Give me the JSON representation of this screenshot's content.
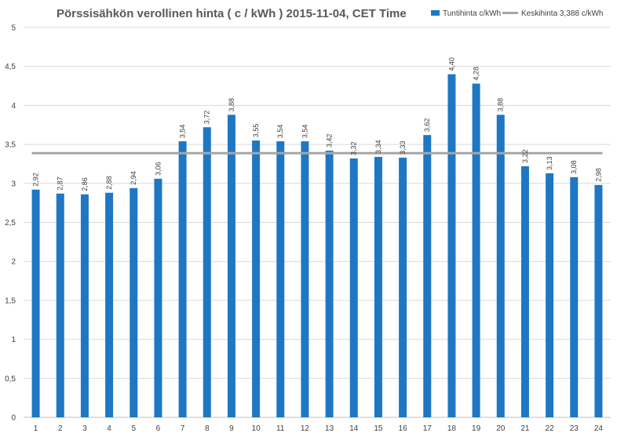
{
  "chart_data": {
    "type": "bar",
    "title": "Pörssisähkön verollinen hinta ( c / kWh ) 2015-11-04, CET Time",
    "categories": [
      "1",
      "2",
      "3",
      "4",
      "5",
      "6",
      "7",
      "8",
      "9",
      "10",
      "11",
      "12",
      "13",
      "14",
      "15",
      "16",
      "17",
      "18",
      "19",
      "20",
      "21",
      "22",
      "23",
      "24"
    ],
    "series": [
      {
        "name": "Tuntihinta c/kWh",
        "type": "bar",
        "color": "#1f77c4",
        "values": [
          2.92,
          2.87,
          2.86,
          2.88,
          2.94,
          3.06,
          3.54,
          3.72,
          3.88,
          3.55,
          3.54,
          3.54,
          3.42,
          3.32,
          3.34,
          3.33,
          3.62,
          4.4,
          4.28,
          3.88,
          3.22,
          3.13,
          3.08,
          2.98
        ],
        "labels": [
          "2,92",
          "2,87",
          "2,86",
          "2,88",
          "2,94",
          "3,06",
          "3,54",
          "3,72",
          "3,88",
          "3,55",
          "3,54",
          "3,54",
          "3,42",
          "3,32",
          "3,34",
          "3,33",
          "3,62",
          "4,40",
          "4,28",
          "3,88",
          "3,22",
          "3,13",
          "3,08",
          "2,98"
        ]
      },
      {
        "name": "Keskihinta 3,388 c/kWh",
        "type": "line",
        "color": "#a6a6a6",
        "value": 3.388
      }
    ],
    "ylim": [
      0,
      5
    ],
    "yticks": [
      0,
      0.5,
      1,
      1.5,
      2,
      2.5,
      3,
      3.5,
      4,
      4.5,
      5
    ],
    "ytick_labels": [
      "0",
      "0,5",
      "1",
      "1,5",
      "2",
      "2,5",
      "3",
      "3,5",
      "4",
      "4,5",
      "5"
    ],
    "grid": true,
    "legend_position": "top-right",
    "xlabel": "",
    "ylabel": ""
  }
}
